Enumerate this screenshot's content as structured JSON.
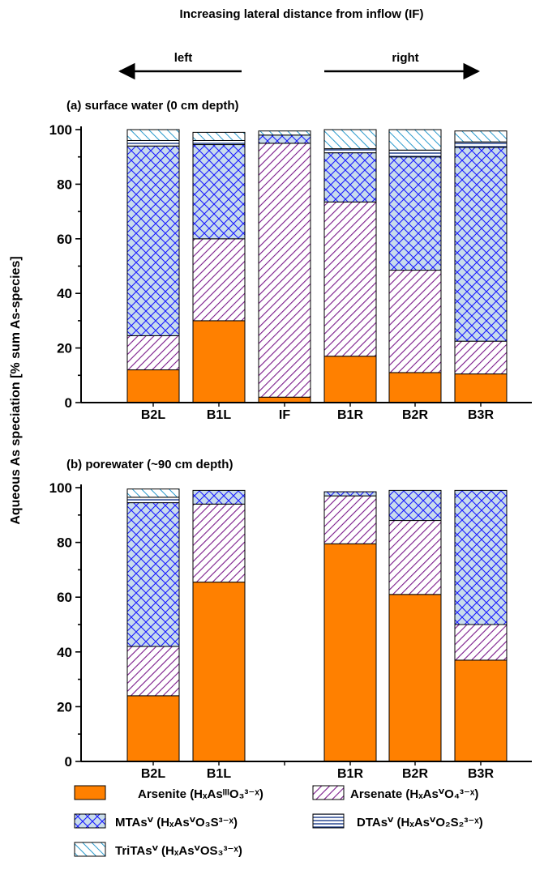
{
  "header": {
    "title": "Increasing lateral distance from inflow (IF)",
    "left_label": "left",
    "right_label": "right"
  },
  "y_axis_label": "Aqueous As speciation [% sum As-species]",
  "colors": {
    "arsenite": "#ff8000",
    "arsenate_stripe": "#7a1a8a",
    "mtas_fill": "#c8dcec",
    "mtas_line": "#1a1aff",
    "dtas_line": "#1a3a8a",
    "tritas_line": "#2a9acc"
  },
  "chart_data": [
    {
      "type": "bar",
      "stacked": true,
      "title": "(a) surface water (0 cm depth)",
      "categories": [
        "B2L",
        "B1L",
        "IF",
        "B1R",
        "B2R",
        "B3R"
      ],
      "ylim": [
        0,
        100
      ],
      "yticks": [
        0,
        20,
        40,
        60,
        80,
        100
      ],
      "grid": false,
      "series": [
        {
          "name": "Arsenite",
          "values": [
            12,
            30,
            2,
            17,
            11,
            10.5
          ]
        },
        {
          "name": "Arsenate",
          "values": [
            12.5,
            30,
            93,
            56.5,
            37.5,
            12
          ]
        },
        {
          "name": "MTAs",
          "values": [
            69.5,
            34.5,
            3,
            18,
            41.5,
            71
          ]
        },
        {
          "name": "DTAs",
          "values": [
            2,
            1.5,
            0,
            1.5,
            2.5,
            2
          ]
        },
        {
          "name": "TriTAs",
          "values": [
            4,
            3,
            1.5,
            7,
            7.5,
            4
          ]
        }
      ]
    },
    {
      "type": "bar",
      "stacked": true,
      "title": "(b) porewater (~90 cm depth)",
      "categories": [
        "B2L",
        "B1L",
        "",
        "B1R",
        "B2R",
        "B3R"
      ],
      "ylim": [
        0,
        100
      ],
      "yticks": [
        0,
        20,
        40,
        60,
        80,
        100
      ],
      "grid": false,
      "series": [
        {
          "name": "Arsenite",
          "values": [
            24,
            65.5,
            0,
            79.5,
            61,
            37
          ]
        },
        {
          "name": "Arsenate",
          "values": [
            18,
            28.5,
            0,
            17.5,
            27,
            13
          ]
        },
        {
          "name": "MTAs",
          "values": [
            52.5,
            5,
            0,
            1.5,
            11,
            49
          ]
        },
        {
          "name": "DTAs",
          "values": [
            2,
            0,
            0,
            0,
            0,
            0
          ]
        },
        {
          "name": "TriTAs",
          "values": [
            3,
            0,
            0,
            0,
            0,
            0
          ]
        }
      ]
    }
  ],
  "legend": [
    {
      "key": "arsenite",
      "label": "Arsenite (HₓAsᴵᴵᴵO₃³⁻ˣ)"
    },
    {
      "key": "arsenate",
      "label": "Arsenate (HₓAsⱽO₄³⁻ˣ)"
    },
    {
      "key": "mtas",
      "label": "MTAsⱽ (HₓAsⱽO₃S³⁻ˣ)"
    },
    {
      "key": "dtas",
      "label": "DTAsⱽ (HₓAsⱽO₂S₂³⁻ˣ)"
    },
    {
      "key": "tritas",
      "label": "TriTAsⱽ (HₓAsⱽOS₃³⁻ˣ)"
    }
  ]
}
